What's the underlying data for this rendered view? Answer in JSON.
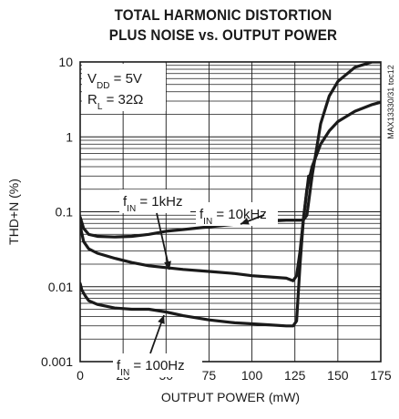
{
  "title_line1": "TOTAL HARMONIC DISTORTION",
  "title_line2": "PLUS NOISE vs. OUTPUT POWER",
  "part_label": "MAX13330/31 toc12",
  "conditions": [
    {
      "main": "V",
      "sub": "DD",
      "rest": " = 5V"
    },
    {
      "main": "R",
      "sub": "L",
      "rest": " = 32Ω"
    }
  ],
  "chart_data": {
    "type": "line",
    "xlabel": "OUTPUT POWER (mW)",
    "ylabel": "THD+N (%)",
    "xlim": [
      0,
      175
    ],
    "ylim": [
      0.001,
      10
    ],
    "yscale": "log",
    "grid": true,
    "x_ticks": [
      "0",
      "25",
      "50",
      "75",
      "100",
      "125",
      "150",
      "175"
    ],
    "y_ticks": [
      "0.001",
      "0.01",
      "0.1",
      "1",
      "10"
    ],
    "series": [
      {
        "name": "fIN = 10kHz",
        "label_main": "f",
        "label_sub": "IN",
        "label_rest": " = 10kHz",
        "x": [
          0,
          2,
          5,
          10,
          20,
          30,
          40,
          50,
          60,
          75,
          90,
          100,
          110,
          120,
          125,
          128,
          130,
          132,
          135,
          140,
          145,
          150,
          160,
          170,
          175
        ],
        "y": [
          0.085,
          0.06,
          0.05,
          0.047,
          0.046,
          0.047,
          0.05,
          0.055,
          0.058,
          0.063,
          0.068,
          0.072,
          0.075,
          0.077,
          0.077,
          0.077,
          0.078,
          0.09,
          0.3,
          1.5,
          3.5,
          5.5,
          8.5,
          10,
          10
        ]
      },
      {
        "name": "fIN = 1kHz",
        "label_main": "f",
        "label_sub": "IN",
        "label_rest": " = 1kHz",
        "x": [
          0,
          2,
          5,
          10,
          20,
          30,
          40,
          50,
          60,
          75,
          90,
          100,
          110,
          120,
          124,
          126,
          128,
          130,
          132,
          135,
          140,
          145,
          150,
          160,
          170,
          175
        ],
        "y": [
          0.065,
          0.04,
          0.032,
          0.028,
          0.024,
          0.021,
          0.019,
          0.018,
          0.017,
          0.016,
          0.015,
          0.014,
          0.0135,
          0.013,
          0.012,
          0.014,
          0.03,
          0.08,
          0.2,
          0.4,
          0.8,
          1.2,
          1.6,
          2.2,
          2.7,
          2.9
        ]
      },
      {
        "name": "fIN = 100Hz",
        "label_main": "f",
        "label_sub": "IN",
        "label_rest": " = 100Hz",
        "x": [
          0,
          1,
          3,
          5,
          10,
          20,
          30,
          40,
          50,
          60,
          75,
          90,
          100,
          110,
          120,
          124,
          126,
          128,
          130,
          133
        ],
        "y": [
          0.011,
          0.009,
          0.0075,
          0.0065,
          0.0058,
          0.0052,
          0.005,
          0.005,
          0.0046,
          0.0041,
          0.0036,
          0.0033,
          0.0032,
          0.0031,
          0.003,
          0.003,
          0.0035,
          0.02,
          0.08,
          0.3
        ]
      }
    ]
  }
}
